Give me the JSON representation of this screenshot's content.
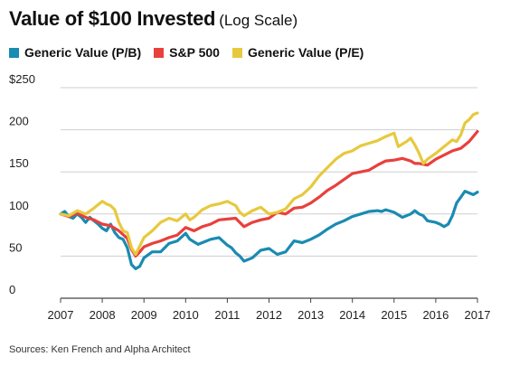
{
  "chart_data": {
    "type": "line",
    "title": "Value of $100 Invested",
    "subtitle": "(Log Scale)",
    "source": "Sources: Ken French and Alpha Architect",
    "y_tick_labels": [
      "$250",
      "200",
      "150",
      "100",
      "50",
      "0"
    ],
    "y_tick_values": [
      250,
      200,
      150,
      100,
      50,
      0
    ],
    "x_tick_labels": [
      "2007",
      "2008",
      "2009",
      "2010",
      "2011",
      "2012",
      "2013",
      "2014",
      "2015",
      "2016",
      "2017"
    ],
    "xlim": [
      2007,
      2017
    ],
    "ylim": [
      0,
      250
    ],
    "grid": true,
    "legend_position": "top-left",
    "series": [
      {
        "name": "Generic Value (P/B)",
        "color": "#1a8bb1",
        "x": [
          2007.0,
          2007.1,
          2007.2,
          2007.3,
          2007.4,
          2007.5,
          2007.6,
          2007.7,
          2007.8,
          2007.9,
          2008.0,
          2008.1,
          2008.2,
          2008.3,
          2008.4,
          2008.5,
          2008.6,
          2008.7,
          2008.8,
          2008.9,
          2009.0,
          2009.2,
          2009.4,
          2009.6,
          2009.8,
          2010.0,
          2010.1,
          2010.2,
          2010.3,
          2010.4,
          2010.6,
          2010.8,
          2011.0,
          2011.1,
          2011.2,
          2011.3,
          2011.4,
          2011.6,
          2011.8,
          2012.0,
          2012.2,
          2012.4,
          2012.6,
          2012.8,
          2013.0,
          2013.2,
          2013.4,
          2013.6,
          2013.8,
          2014.0,
          2014.2,
          2014.4,
          2014.6,
          2014.7,
          2014.8,
          2015.0,
          2015.2,
          2015.4,
          2015.5,
          2015.6,
          2015.7,
          2015.8,
          2016.0,
          2016.1,
          2016.2,
          2016.3,
          2016.4,
          2016.5,
          2016.6,
          2016.7,
          2016.8,
          2016.9,
          2017.0
        ],
        "values": [
          100,
          103,
          97,
          95,
          100,
          96,
          90,
          96,
          92,
          88,
          83,
          80,
          88,
          78,
          72,
          70,
          60,
          40,
          35,
          38,
          48,
          55,
          55,
          65,
          68,
          77,
          70,
          67,
          64,
          66,
          70,
          72,
          63,
          60,
          54,
          50,
          44,
          48,
          57,
          59,
          52,
          55,
          68,
          66,
          70,
          75,
          82,
          88,
          92,
          97,
          100,
          103,
          104,
          103,
          105,
          102,
          96,
          100,
          104,
          100,
          98,
          92,
          90,
          88,
          85,
          88,
          98,
          113,
          120,
          127,
          125,
          123,
          126
        ]
      },
      {
        "name": "S&P 500",
        "color": "#e8403c",
        "x": [
          2007.0,
          2007.2,
          2007.4,
          2007.6,
          2007.8,
          2008.0,
          2008.2,
          2008.4,
          2008.6,
          2008.7,
          2008.8,
          2008.9,
          2009.0,
          2009.2,
          2009.4,
          2009.6,
          2009.8,
          2010.0,
          2010.2,
          2010.4,
          2010.6,
          2010.8,
          2011.0,
          2011.2,
          2011.4,
          2011.6,
          2011.8,
          2012.0,
          2012.2,
          2012.4,
          2012.6,
          2012.8,
          2013.0,
          2013.2,
          2013.4,
          2013.6,
          2013.8,
          2014.0,
          2014.2,
          2014.4,
          2014.6,
          2014.8,
          2015.0,
          2015.2,
          2015.4,
          2015.5,
          2015.6,
          2015.8,
          2016.0,
          2016.2,
          2016.4,
          2016.6,
          2016.8,
          2017.0
        ],
        "values": [
          100,
          97,
          101,
          96,
          93,
          88,
          86,
          80,
          71,
          58,
          50,
          55,
          61,
          65,
          68,
          72,
          75,
          84,
          80,
          85,
          88,
          93,
          94,
          95,
          85,
          90,
          93,
          95,
          102,
          100,
          107,
          108,
          113,
          120,
          128,
          134,
          141,
          148,
          150,
          152,
          158,
          163,
          164,
          166,
          163,
          160,
          160,
          158,
          165,
          170,
          175,
          178,
          186,
          198
        ]
      },
      {
        "name": "Generic Value (P/E)",
        "color": "#e7c93e",
        "x": [
          2007.0,
          2007.2,
          2007.4,
          2007.6,
          2007.8,
          2008.0,
          2008.1,
          2008.2,
          2008.3,
          2008.4,
          2008.5,
          2008.6,
          2008.7,
          2008.8,
          2008.9,
          2009.0,
          2009.2,
          2009.4,
          2009.6,
          2009.8,
          2010.0,
          2010.1,
          2010.2,
          2010.4,
          2010.6,
          2010.8,
          2011.0,
          2011.2,
          2011.3,
          2011.4,
          2011.6,
          2011.8,
          2012.0,
          2012.2,
          2012.4,
          2012.6,
          2012.8,
          2013.0,
          2013.2,
          2013.4,
          2013.6,
          2013.8,
          2014.0,
          2014.2,
          2014.4,
          2014.6,
          2014.8,
          2015.0,
          2015.1,
          2015.2,
          2015.3,
          2015.4,
          2015.5,
          2015.6,
          2015.7,
          2015.8,
          2016.0,
          2016.2,
          2016.4,
          2016.5,
          2016.6,
          2016.7,
          2016.8,
          2016.9,
          2017.0
        ],
        "values": [
          100,
          98,
          104,
          100,
          107,
          115,
          112,
          110,
          105,
          90,
          80,
          78,
          60,
          52,
          62,
          72,
          80,
          90,
          95,
          92,
          100,
          93,
          96,
          105,
          110,
          112,
          115,
          110,
          102,
          98,
          104,
          108,
          100,
          102,
          106,
          118,
          123,
          132,
          145,
          155,
          165,
          172,
          175,
          181,
          184,
          187,
          192,
          196,
          180,
          183,
          186,
          190,
          182,
          172,
          160,
          165,
          172,
          180,
          188,
          186,
          194,
          208,
          212,
          218,
          220
        ]
      }
    ]
  }
}
